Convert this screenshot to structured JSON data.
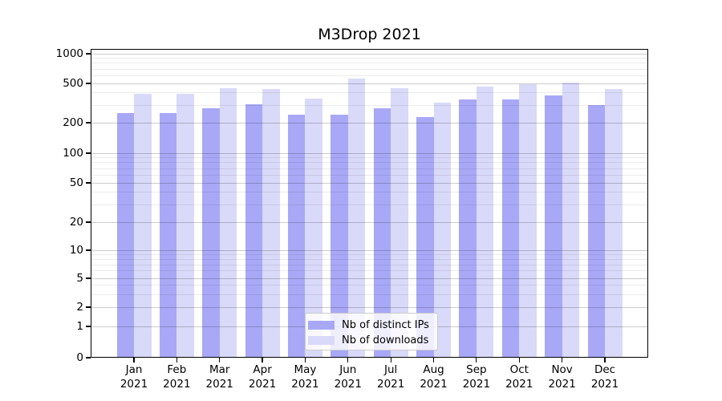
{
  "chart_data": {
    "type": "bar",
    "title": "M3Drop 2021",
    "categories": [
      "Jan 2021",
      "Feb 2021",
      "Mar 2021",
      "Apr 2021",
      "May 2021",
      "Jun 2021",
      "Jul 2021",
      "Aug 2021",
      "Sep 2021",
      "Oct 2021",
      "Nov 2021",
      "Dec 2021"
    ],
    "series": [
      {
        "name": "Nb of distinct IPs",
        "color": "#a8a8f7",
        "values": [
          250,
          250,
          280,
          310,
          240,
          240,
          280,
          230,
          345,
          345,
          375,
          300
        ]
      },
      {
        "name": "Nb of downloads",
        "color": "#d9d9f9",
        "values": [
          390,
          390,
          445,
          440,
          350,
          555,
          445,
          320,
          460,
          490,
          510,
          440
        ]
      }
    ],
    "yaxis": {
      "scale": "log-like",
      "ticks": [
        0,
        1,
        2,
        5,
        10,
        20,
        50,
        100,
        200,
        500,
        1000
      ],
      "tick_labels": [
        "0",
        "1",
        "2",
        "5",
        "10",
        "20",
        "50",
        "100",
        "200",
        "500",
        "1000"
      ],
      "ylim": [
        0,
        1000
      ]
    },
    "xlabel": "",
    "ylabel": "",
    "grid": true,
    "legend_position": "lower center"
  },
  "colors": {
    "bar_distinct_ips": "#a8a8f7",
    "bar_downloads": "#d9d9f9",
    "axis": "#000000",
    "legend_border": "#cccccc"
  }
}
